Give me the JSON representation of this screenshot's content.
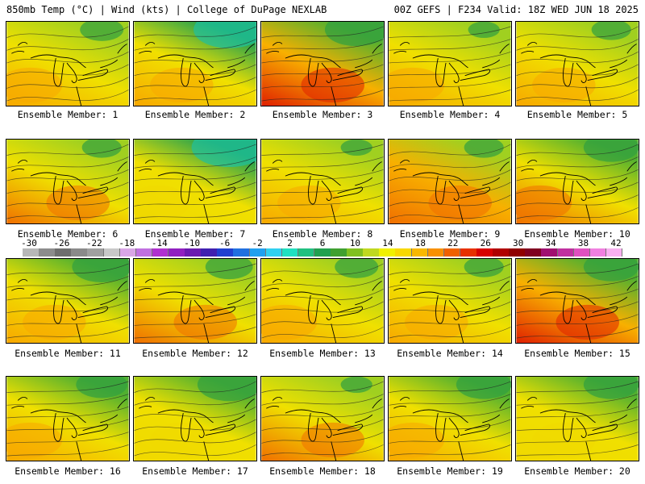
{
  "header": {
    "left_title": "850mb Temp (°C) | Wind (kts) | College of DuPage NEXLAB",
    "right_title": "00Z GEFS | F234 Valid: 18Z WED JUN 18 2025"
  },
  "members": [
    {
      "label": "Ensemble Member: 1",
      "warmth": 0.55,
      "cold_ne": 0.55
    },
    {
      "label": "Ensemble Member: 2",
      "warmth": 0.55,
      "cold_ne": 0.9
    },
    {
      "label": "Ensemble Member: 3",
      "warmth": 0.8,
      "cold_ne": 0.8
    },
    {
      "label": "Ensemble Member: 4",
      "warmth": 0.5,
      "cold_ne": 0.4
    },
    {
      "label": "Ensemble Member: 5",
      "warmth": 0.5,
      "cold_ne": 0.5
    },
    {
      "label": "Ensemble Member: 6",
      "warmth": 0.65,
      "cold_ne": 0.5
    },
    {
      "label": "Ensemble Member: 7",
      "warmth": 0.3,
      "cold_ne": 0.95
    },
    {
      "label": "Ensemble Member: 8",
      "warmth": 0.6,
      "cold_ne": 0.4
    },
    {
      "label": "Ensemble Member: 9",
      "warmth": 0.75,
      "cold_ne": 0.5
    },
    {
      "label": "Ensemble Member: 10",
      "warmth": 0.65,
      "cold_ne": 0.7
    },
    {
      "label": "Ensemble Member: 11",
      "warmth": 0.55,
      "cold_ne": 0.75
    },
    {
      "label": "Ensemble Member: 12",
      "warmth": 0.7,
      "cold_ne": 0.6
    },
    {
      "label": "Ensemble Member: 13",
      "warmth": 0.55,
      "cold_ne": 0.55
    },
    {
      "label": "Ensemble Member: 14",
      "warmth": 0.6,
      "cold_ne": 0.5
    },
    {
      "label": "Ensemble Member: 15",
      "warmth": 0.85,
      "cold_ne": 0.7
    },
    {
      "label": "Ensemble Member: 16",
      "warmth": 0.6,
      "cold_ne": 0.65
    },
    {
      "label": "Ensemble Member: 17",
      "warmth": 0.4,
      "cold_ne": 0.8
    },
    {
      "label": "Ensemble Member: 18",
      "warmth": 0.65,
      "cold_ne": 0.4
    },
    {
      "label": "Ensemble Member: 19",
      "warmth": 0.6,
      "cold_ne": 0.7
    },
    {
      "label": "Ensemble Member: 20",
      "warmth": 0.3,
      "cold_ne": 0.7
    }
  ],
  "colorbar": {
    "ticks": [
      "-30",
      "-26",
      "-22",
      "-18",
      "-14",
      "-10",
      "-6",
      "-2",
      "2",
      "6",
      "10",
      "14",
      "18",
      "22",
      "26",
      "30",
      "34",
      "38",
      "42"
    ],
    "colors": [
      "#b7b7b7",
      "#8c8c8c",
      "#6e6e6e",
      "#8a8a8a",
      "#a0a0a0",
      "#c8c8c8",
      "#d9a6e6",
      "#c070e0",
      "#b030d0",
      "#9020c0",
      "#6a1ab0",
      "#4020b0",
      "#2040d0",
      "#2070e0",
      "#20a0f0",
      "#30d0f0",
      "#20e0c0",
      "#20c080",
      "#20a050",
      "#40a030",
      "#80c020",
      "#c0d820",
      "#f0f000",
      "#f8d800",
      "#f8b800",
      "#f89000",
      "#f06000",
      "#e83000",
      "#d80000",
      "#b00000",
      "#900000",
      "#800020",
      "#a01070",
      "#c030a0",
      "#e050c0",
      "#f080e0",
      "#f8b0f0"
    ]
  }
}
